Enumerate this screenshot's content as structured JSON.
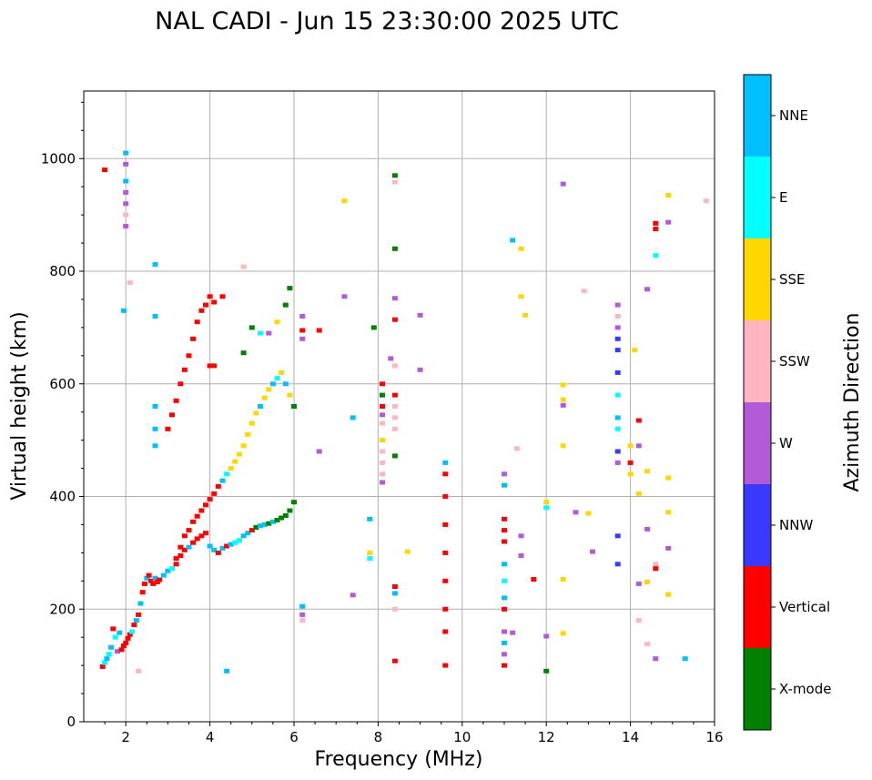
{
  "chart_data": {
    "type": "scatter",
    "title": "NAL CADI - Jun 15 23:30:00 2025 UTC",
    "xlabel": "Frequency (MHz)",
    "ylabel": "Virtual height (km)",
    "xlim": [
      1,
      16
    ],
    "ylim": [
      0,
      1120
    ],
    "xticks": [
      2,
      4,
      6,
      8,
      10,
      12,
      14,
      16
    ],
    "yticks": [
      0,
      200,
      400,
      600,
      800,
      1000
    ],
    "grid": true,
    "colorbar": {
      "title": "Azimuth Direction",
      "categories": [
        {
          "name": "X-mode",
          "color": "#008000"
        },
        {
          "name": "Vertical",
          "color": "#ff0000"
        },
        {
          "name": "NNW",
          "color": "#3a3aff"
        },
        {
          "name": "W",
          "color": "#b25ad8"
        },
        {
          "name": "SSW",
          "color": "#ffb6c1"
        },
        {
          "name": "SSE",
          "color": "#ffd700"
        },
        {
          "name": "E",
          "color": "#00ffff"
        },
        {
          "name": "NNE",
          "color": "#00bfff"
        }
      ]
    },
    "points": [
      [
        1.45,
        98,
        1
      ],
      [
        1.5,
        105,
        6
      ],
      [
        1.55,
        112,
        7
      ],
      [
        1.6,
        120,
        6
      ],
      [
        1.65,
        132,
        7
      ],
      [
        1.7,
        165,
        1
      ],
      [
        1.75,
        150,
        6
      ],
      [
        1.8,
        125,
        3
      ],
      [
        1.85,
        158,
        7
      ],
      [
        1.9,
        128,
        1
      ],
      [
        1.95,
        135,
        1
      ],
      [
        2.0,
        140,
        1
      ],
      [
        2.05,
        148,
        1
      ],
      [
        2.1,
        155,
        1
      ],
      [
        2.15,
        160,
        6
      ],
      [
        2.2,
        172,
        1
      ],
      [
        2.25,
        180,
        7
      ],
      [
        2.3,
        190,
        1
      ],
      [
        2.35,
        210,
        7
      ],
      [
        2.4,
        230,
        1
      ],
      [
        2.45,
        245,
        1
      ],
      [
        2.5,
        255,
        7
      ],
      [
        2.55,
        260,
        1
      ],
      [
        2.6,
        250,
        1
      ],
      [
        2.65,
        245,
        1
      ],
      [
        2.7,
        255,
        7
      ],
      [
        2.75,
        248,
        1
      ],
      [
        2.8,
        252,
        1
      ],
      [
        2.9,
        260,
        7
      ],
      [
        3.0,
        268,
        7
      ],
      [
        3.1,
        272,
        6
      ],
      [
        3.2,
        280,
        1
      ],
      [
        3.3,
        295,
        1
      ],
      [
        3.4,
        305,
        1
      ],
      [
        3.5,
        310,
        7
      ],
      [
        3.6,
        318,
        1
      ],
      [
        3.7,
        325,
        1
      ],
      [
        3.8,
        330,
        1
      ],
      [
        3.9,
        335,
        1
      ],
      [
        4.0,
        312,
        7
      ],
      [
        4.1,
        305,
        7
      ],
      [
        4.2,
        300,
        1
      ],
      [
        4.3,
        308,
        7
      ],
      [
        4.4,
        312,
        1
      ],
      [
        4.5,
        315,
        7
      ],
      [
        4.6,
        318,
        6
      ],
      [
        4.7,
        322,
        6
      ],
      [
        4.8,
        330,
        7
      ],
      [
        4.9,
        335,
        7
      ],
      [
        5.0,
        340,
        1
      ],
      [
        5.1,
        345,
        0
      ],
      [
        5.2,
        348,
        7
      ],
      [
        5.3,
        350,
        7
      ],
      [
        5.4,
        352,
        0
      ],
      [
        5.5,
        355,
        7
      ],
      [
        5.6,
        358,
        0
      ],
      [
        5.7,
        362,
        0
      ],
      [
        5.8,
        366,
        0
      ],
      [
        5.9,
        375,
        0
      ],
      [
        6.0,
        390,
        0
      ],
      [
        3.2,
        290,
        1
      ],
      [
        3.3,
        310,
        1
      ],
      [
        3.4,
        330,
        1
      ],
      [
        3.5,
        340,
        1
      ],
      [
        3.6,
        355,
        1
      ],
      [
        3.7,
        365,
        1
      ],
      [
        3.8,
        375,
        1
      ],
      [
        3.9,
        385,
        1
      ],
      [
        4.0,
        395,
        1
      ],
      [
        4.1,
        405,
        1
      ],
      [
        4.2,
        418,
        1
      ],
      [
        4.3,
        428,
        7
      ],
      [
        4.4,
        440,
        6
      ],
      [
        4.5,
        450,
        5
      ],
      [
        4.6,
        462,
        5
      ],
      [
        4.7,
        475,
        5
      ],
      [
        4.8,
        490,
        5
      ],
      [
        4.9,
        510,
        5
      ],
      [
        5.0,
        530,
        5
      ],
      [
        5.1,
        548,
        5
      ],
      [
        5.2,
        560,
        7
      ],
      [
        5.3,
        575,
        5
      ],
      [
        5.4,
        590,
        5
      ],
      [
        5.5,
        600,
        7
      ],
      [
        5.6,
        610,
        6
      ],
      [
        5.7,
        620,
        5
      ],
      [
        5.8,
        600,
        7
      ],
      [
        5.9,
        580,
        5
      ],
      [
        6.0,
        560,
        0
      ],
      [
        3.0,
        520,
        1
      ],
      [
        3.1,
        545,
        1
      ],
      [
        3.2,
        570,
        1
      ],
      [
        3.3,
        600,
        1
      ],
      [
        3.4,
        625,
        1
      ],
      [
        3.5,
        650,
        1
      ],
      [
        3.6,
        680,
        1
      ],
      [
        3.7,
        710,
        1
      ],
      [
        3.8,
        730,
        1
      ],
      [
        3.9,
        740,
        1
      ],
      [
        4.0,
        755,
        1
      ],
      [
        4.1,
        745,
        1
      ],
      [
        4.3,
        755,
        1
      ],
      [
        4.0,
        632,
        1
      ],
      [
        4.1,
        632,
        1
      ],
      [
        5.0,
        700,
        0
      ],
      [
        5.2,
        690,
        6
      ],
      [
        5.4,
        690,
        3
      ],
      [
        5.6,
        710,
        5
      ],
      [
        5.8,
        740,
        0
      ],
      [
        5.9,
        770,
        0
      ],
      [
        4.8,
        655,
        0
      ],
      [
        2.0,
        960,
        7
      ],
      [
        2.0,
        940,
        3
      ],
      [
        2.0,
        920,
        3
      ],
      [
        2.0,
        900,
        4
      ],
      [
        2.0,
        880,
        3
      ],
      [
        2.0,
        990,
        3
      ],
      [
        2.0,
        1010,
        7
      ],
      [
        1.5,
        980,
        1
      ],
      [
        1.95,
        730,
        7
      ],
      [
        2.1,
        780,
        4
      ],
      [
        2.7,
        812,
        7
      ],
      [
        4.8,
        808,
        4
      ],
      [
        6.2,
        720,
        3
      ],
      [
        6.2,
        680,
        3
      ],
      [
        6.2,
        695,
        1
      ],
      [
        6.2,
        205,
        7
      ],
      [
        6.2,
        190,
        3
      ],
      [
        6.2,
        180,
        4
      ],
      [
        6.6,
        695,
        1
      ],
      [
        6.6,
        480,
        3
      ],
      [
        7.2,
        925,
        5
      ],
      [
        7.2,
        755,
        3
      ],
      [
        7.8,
        360,
        7
      ],
      [
        7.8,
        300,
        5
      ],
      [
        7.8,
        290,
        6
      ],
      [
        7.4,
        540,
        7
      ],
      [
        7.4,
        225,
        3
      ],
      [
        7.9,
        700,
        0
      ],
      [
        8.1,
        600,
        1
      ],
      [
        8.1,
        580,
        0
      ],
      [
        8.1,
        560,
        1
      ],
      [
        8.1,
        545,
        3
      ],
      [
        8.1,
        530,
        4
      ],
      [
        8.1,
        500,
        5
      ],
      [
        8.1,
        480,
        4
      ],
      [
        8.1,
        460,
        4
      ],
      [
        8.1,
        440,
        4
      ],
      [
        8.1,
        425,
        3
      ],
      [
        8.4,
        970,
        0
      ],
      [
        8.4,
        958,
        4
      ],
      [
        8.4,
        840,
        0
      ],
      [
        8.4,
        752,
        3
      ],
      [
        8.4,
        714,
        1
      ],
      [
        8.4,
        632,
        4
      ],
      [
        8.4,
        580,
        1
      ],
      [
        8.4,
        560,
        4
      ],
      [
        8.4,
        540,
        4
      ],
      [
        8.4,
        520,
        4
      ],
      [
        8.4,
        472,
        0
      ],
      [
        8.4,
        240,
        1
      ],
      [
        8.4,
        228,
        7
      ],
      [
        8.4,
        200,
        4
      ],
      [
        8.4,
        108,
        1
      ],
      [
        8.3,
        645,
        3
      ],
      [
        8.7,
        302,
        5
      ],
      [
        9.0,
        625,
        3
      ],
      [
        9.0,
        722,
        3
      ],
      [
        9.6,
        460,
        7
      ],
      [
        9.6,
        440,
        1
      ],
      [
        9.6,
        400,
        1
      ],
      [
        9.6,
        350,
        1
      ],
      [
        9.6,
        300,
        1
      ],
      [
        9.6,
        250,
        1
      ],
      [
        9.6,
        200,
        1
      ],
      [
        9.6,
        160,
        1
      ],
      [
        9.6,
        100,
        1
      ],
      [
        11.0,
        440,
        3
      ],
      [
        11.0,
        420,
        7
      ],
      [
        11.0,
        360,
        1
      ],
      [
        11.0,
        340,
        1
      ],
      [
        11.0,
        320,
        1
      ],
      [
        11.0,
        280,
        7
      ],
      [
        11.0,
        250,
        6
      ],
      [
        11.0,
        220,
        7
      ],
      [
        11.0,
        200,
        1
      ],
      [
        11.0,
        160,
        3
      ],
      [
        11.0,
        140,
        7
      ],
      [
        11.0,
        120,
        3
      ],
      [
        11.0,
        100,
        1
      ],
      [
        11.2,
        855,
        7
      ],
      [
        11.4,
        840,
        5
      ],
      [
        11.4,
        755,
        5
      ],
      [
        11.5,
        722,
        5
      ],
      [
        11.3,
        485,
        4
      ],
      [
        11.4,
        330,
        3
      ],
      [
        11.4,
        295,
        3
      ],
      [
        11.7,
        253,
        1
      ],
      [
        11.2,
        158,
        3
      ],
      [
        12.0,
        90,
        0
      ],
      [
        12.0,
        152,
        3
      ],
      [
        12.0,
        380,
        6
      ],
      [
        12.0,
        390,
        5
      ],
      [
        12.4,
        955,
        3
      ],
      [
        12.4,
        598,
        5
      ],
      [
        12.4,
        572,
        5
      ],
      [
        12.4,
        562,
        3
      ],
      [
        12.4,
        490,
        5
      ],
      [
        12.4,
        253,
        5
      ],
      [
        12.4,
        157,
        5
      ],
      [
        12.7,
        372,
        3
      ],
      [
        12.9,
        765,
        4
      ],
      [
        13.0,
        370,
        5
      ],
      [
        13.1,
        302,
        3
      ],
      [
        13.7,
        740,
        3
      ],
      [
        13.7,
        720,
        4
      ],
      [
        13.7,
        700,
        3
      ],
      [
        13.7,
        680,
        2
      ],
      [
        13.7,
        660,
        2
      ],
      [
        13.7,
        620,
        2
      ],
      [
        13.7,
        580,
        6
      ],
      [
        13.7,
        540,
        7
      ],
      [
        13.7,
        520,
        6
      ],
      [
        13.7,
        480,
        2
      ],
      [
        13.7,
        460,
        3
      ],
      [
        13.7,
        330,
        2
      ],
      [
        13.7,
        280,
        2
      ],
      [
        14.0,
        490,
        5
      ],
      [
        14.0,
        460,
        1
      ],
      [
        14.0,
        440,
        5
      ],
      [
        14.2,
        535,
        1
      ],
      [
        14.2,
        490,
        3
      ],
      [
        14.2,
        405,
        5
      ],
      [
        14.2,
        245,
        3
      ],
      [
        14.2,
        180,
        4
      ],
      [
        14.1,
        660,
        5
      ],
      [
        14.4,
        445,
        5
      ],
      [
        14.4,
        342,
        3
      ],
      [
        14.4,
        248,
        5
      ],
      [
        14.4,
        138,
        4
      ],
      [
        14.4,
        768,
        3
      ],
      [
        14.6,
        885,
        1
      ],
      [
        14.6,
        875,
        1
      ],
      [
        14.6,
        828,
        6
      ],
      [
        14.6,
        280,
        4
      ],
      [
        14.6,
        272,
        1
      ],
      [
        14.6,
        112,
        3
      ],
      [
        14.9,
        935,
        5
      ],
      [
        14.9,
        887,
        3
      ],
      [
        14.9,
        433,
        5
      ],
      [
        14.9,
        372,
        5
      ],
      [
        14.9,
        308,
        3
      ],
      [
        14.9,
        226,
        5
      ],
      [
        15.3,
        112,
        7
      ],
      [
        15.8,
        925,
        4
      ],
      [
        2.7,
        720,
        7
      ],
      [
        2.7,
        560,
        7
      ],
      [
        2.7,
        520,
        7
      ],
      [
        2.7,
        490,
        7
      ],
      [
        4.4,
        90,
        7
      ],
      [
        2.3,
        90,
        4
      ]
    ]
  }
}
